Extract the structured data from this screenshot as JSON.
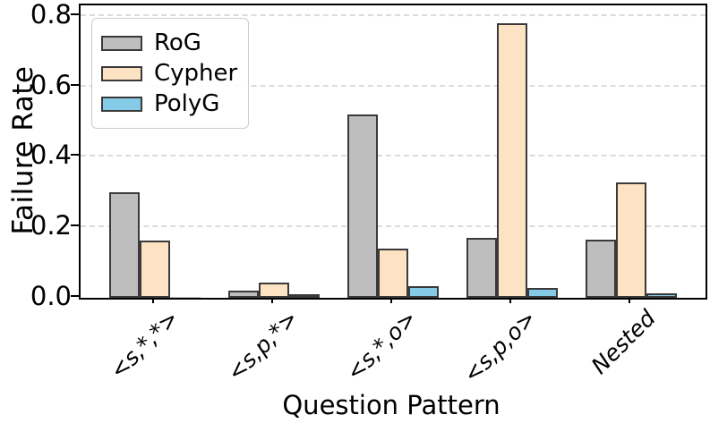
{
  "chart_data": {
    "type": "bar",
    "title": "",
    "xlabel": "Question Pattern",
    "ylabel": "Failure Rate",
    "categories": [
      "<s,*,*>",
      "<s,p,*>",
      "<s,*,o>",
      "<s,p,o>",
      "Nested"
    ],
    "series": [
      {
        "name": "RoG",
        "color": "#bebebe",
        "values": [
          0.3,
          0.02,
          0.52,
          0.17,
          0.165
        ]
      },
      {
        "name": "Cypher",
        "color": "#fde3c3",
        "values": [
          0.163,
          0.042,
          0.14,
          0.78,
          0.327
        ]
      },
      {
        "name": "PolyG",
        "color": "#85cbe8",
        "values": [
          0.002,
          0.005,
          0.032,
          0.029,
          0.012
        ]
      }
    ],
    "ylim": [
      0,
      0.83
    ],
    "yticks": [
      0.0,
      0.2,
      0.4,
      0.6,
      0.8
    ],
    "grid": "horizontal-dashed",
    "legend_position": "upper-left",
    "bar_edge_color": "#3a3a3a",
    "gridline_color": "#dcdcdc"
  }
}
